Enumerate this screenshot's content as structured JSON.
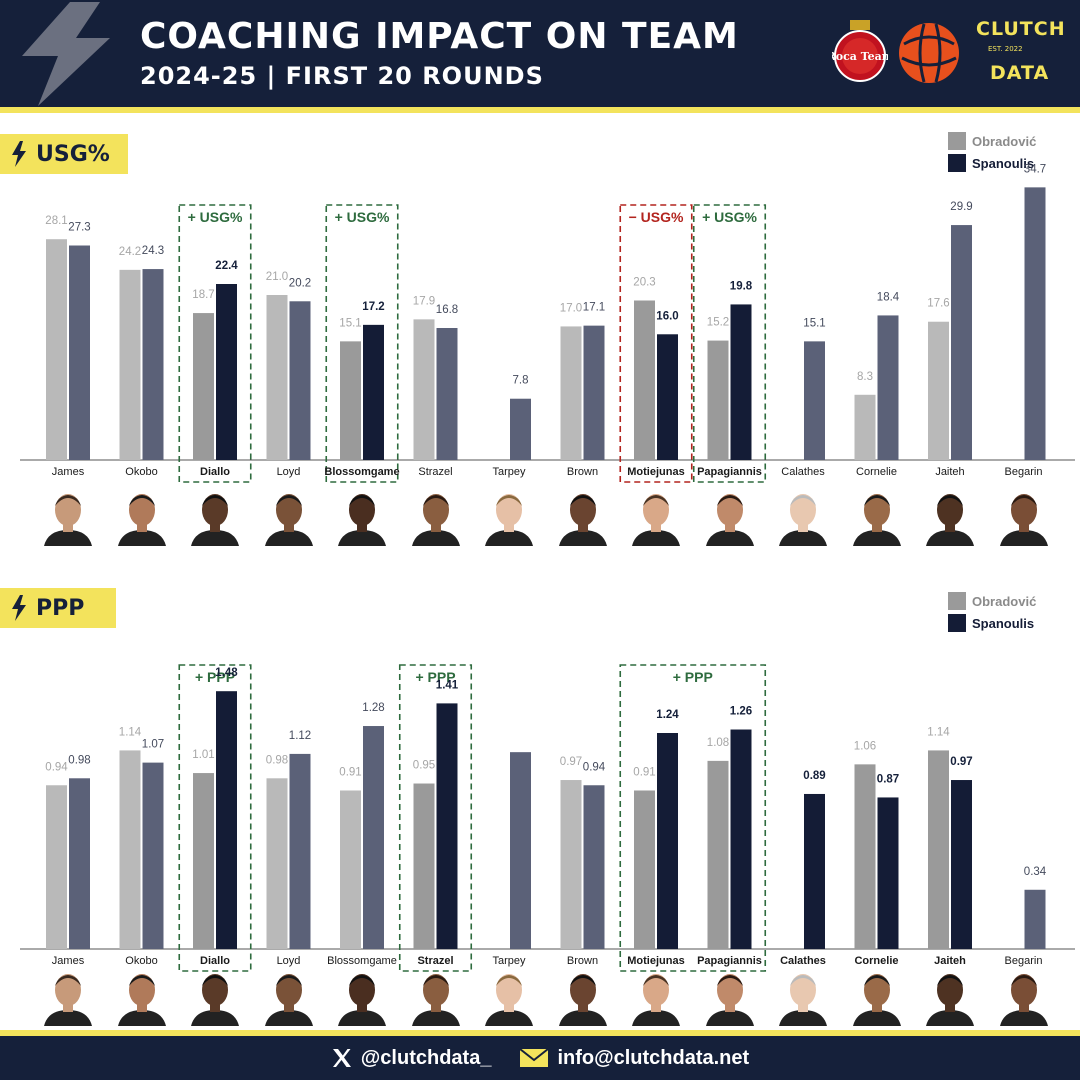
{
  "header": {
    "title": "COACHING IMPACT ON TEAM",
    "subtitle": "2024-25 | FIRST 20 ROUNDS",
    "brand_top": "CLUTCH",
    "brand_est": "EST. 2022",
    "brand_bottom": "DATA",
    "monaco_logo_text": "Roca Team"
  },
  "colors": {
    "navy": "#15203a",
    "yellow": "#f3e35c",
    "obradovic": "#b9b9b9",
    "spanoulis": "#5b6178",
    "highlight_obradovic": "#9a9a9a",
    "highlight_spanoulis": "#141c36",
    "positive_box": "#2e6b3e",
    "negative_box": "#b3241e"
  },
  "legend": {
    "series1": "Obradović",
    "series2": "Spanoulis"
  },
  "players": [
    "James",
    "Okobo",
    "Diallo",
    "Loyd",
    "Blossomgame",
    "Strazel",
    "Tarpey",
    "Brown",
    "Motiejunas",
    "Papagiannis",
    "Calathes",
    "Cornelie",
    "Jaiteh",
    "Begarin"
  ],
  "chart_data": [
    {
      "type": "bar",
      "section_label": "USG%",
      "categories": [
        "James",
        "Okobo",
        "Diallo",
        "Loyd",
        "Blossomgame",
        "Strazel",
        "Tarpey",
        "Brown",
        "Motiejunas",
        "Papagiannis",
        "Calathes",
        "Cornelie",
        "Jaiteh",
        "Begarin"
      ],
      "series": [
        {
          "name": "Obradović",
          "values": [
            28.1,
            24.2,
            18.7,
            21.0,
            15.1,
            17.9,
            null,
            17.0,
            20.3,
            15.2,
            null,
            8.3,
            17.6,
            null
          ]
        },
        {
          "name": "Spanoulis",
          "values": [
            27.3,
            24.3,
            22.4,
            20.2,
            17.2,
            16.8,
            7.8,
            17.1,
            16.0,
            19.8,
            15.1,
            18.4,
            29.9,
            34.7
          ]
        }
      ],
      "value_labels": {
        "Obradović": [
          "28.1",
          "24.2",
          "18.7",
          "21.0",
          "15.1",
          "17.9",
          "",
          "17.0",
          "20.3",
          "15.2",
          "",
          "8.3",
          "17.6",
          ""
        ],
        "Spanoulis": [
          "27.3",
          "24.3",
          "22.4",
          "20.2",
          "17.2",
          "16.8",
          "7.8",
          "17.1",
          "16.0",
          "19.8",
          "15.1",
          "18.4",
          "29.9",
          "34.7"
        ]
      },
      "highlighted": [
        "Diallo",
        "Blossomgame",
        "Motiejunas",
        "Papagiannis"
      ],
      "annotations": [
        {
          "label": "+ USG%",
          "players": [
            "Diallo"
          ],
          "tone": "positive"
        },
        {
          "label": "+ USG%",
          "players": [
            "Blossomgame"
          ],
          "tone": "positive"
        },
        {
          "label": "− USG%",
          "players": [
            "Motiejunas"
          ],
          "tone": "negative"
        },
        {
          "label": "+ USG%",
          "players": [
            "Papagiannis"
          ],
          "tone": "positive"
        }
      ],
      "ylim": [
        0,
        35
      ],
      "grid": false,
      "legend_position": "top-right"
    },
    {
      "type": "bar",
      "section_label": "PPP",
      "categories": [
        "James",
        "Okobo",
        "Diallo",
        "Loyd",
        "Blossomgame",
        "Strazel",
        "Tarpey",
        "Brown",
        "Motiejunas",
        "Papagiannis",
        "Calathes",
        "Cornelie",
        "Jaiteh",
        "Begarin"
      ],
      "series": [
        {
          "name": "Obradović",
          "values": [
            0.94,
            1.14,
            1.01,
            0.98,
            0.91,
            0.95,
            null,
            0.97,
            0.91,
            1.08,
            null,
            1.06,
            1.14,
            null
          ]
        },
        {
          "name": "Spanoulis",
          "values": [
            0.98,
            1.07,
            1.48,
            1.12,
            1.28,
            1.41,
            1.13,
            0.94,
            1.24,
            1.26,
            0.89,
            0.87,
            0.97,
            0.34
          ]
        }
      ],
      "value_labels": {
        "Obradović": [
          "0.94",
          "1.14",
          "1.01",
          "0.98",
          "0.91",
          "0.95",
          "",
          "0.97",
          "0.91",
          "1.08",
          "",
          "1.06",
          "1.14",
          ""
        ],
        "Spanoulis": [
          "0.98",
          "1.07",
          "1.48",
          "1.12",
          "1.28",
          "1.41",
          "",
          "0.94",
          "1.24",
          "1.26",
          "0.89",
          "0.87",
          "0.97",
          "0.34"
        ]
      },
      "highlighted": [
        "Diallo",
        "Strazel",
        "Motiejunas",
        "Papagiannis",
        "Calathes",
        "Cornelie",
        "Jaiteh"
      ],
      "annotations": [
        {
          "label": "+ PPP",
          "players": [
            "Diallo"
          ],
          "tone": "positive"
        },
        {
          "label": "+ PPP",
          "players": [
            "Strazel"
          ],
          "tone": "positive"
        },
        {
          "label": "+ PPP",
          "players": [
            "Motiejunas",
            "Papagiannis"
          ],
          "tone": "positive"
        }
      ],
      "ylim": [
        0,
        1.55
      ],
      "grid": false,
      "legend_position": "top-right"
    }
  ],
  "footer": {
    "twitter": "@clutchdata_",
    "email": "info@clutchdata.net"
  }
}
